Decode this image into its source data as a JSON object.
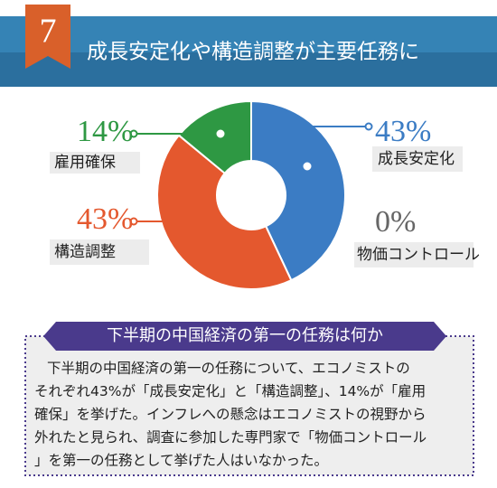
{
  "header": {
    "number": "7",
    "title": "成長安定化や構造調整が主要任務に"
  },
  "chart_data": {
    "type": "pie",
    "donut": true,
    "categories": [
      "成長安定化",
      "物価コントロール",
      "構造調整",
      "雇用確保"
    ],
    "values": [
      43,
      0,
      43,
      14
    ],
    "value_labels": [
      "43%",
      "0%",
      "43%",
      "14%"
    ],
    "colors": [
      "#3b7cc4",
      "#666666",
      "#e4582e",
      "#2e9843"
    ]
  },
  "box": {
    "heading": "下半期の中国経済の第一の任務は何か",
    "lines": [
      "下半期の中国経済の第一の任務について、エコノミストの",
      "それぞれ43%が「成長安定化」と「構造調整」、14%が「雇用",
      "確保」を挙げた。インフレへの懸念はエコノミストの視野から",
      "外れたと見られ、調査に参加した専門家で「物価コントロール",
      "」を第一の任務として挙げた人はいなかった。"
    ]
  }
}
